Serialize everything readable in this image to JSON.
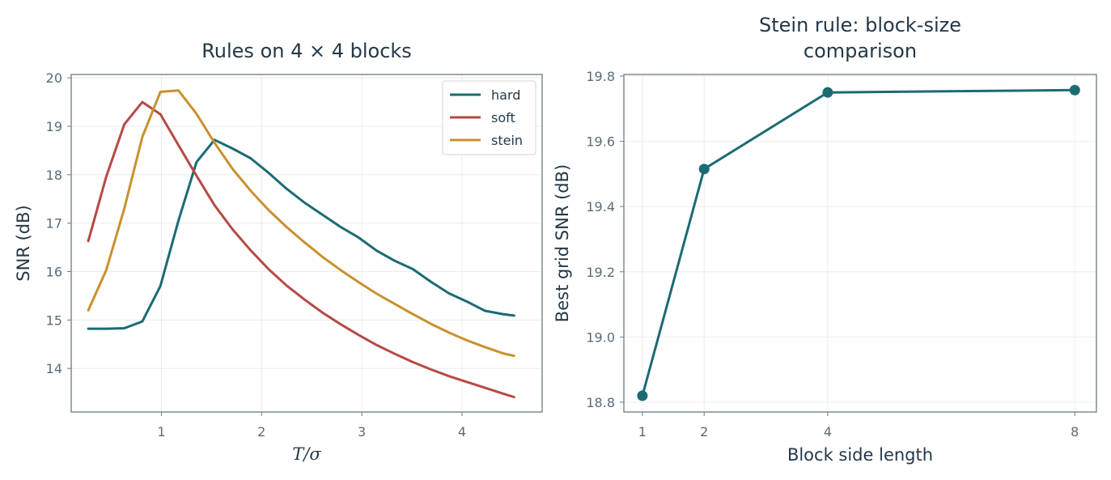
{
  "chart_data": [
    {
      "type": "line",
      "title": "Rules on 4 × 4 blocks",
      "xlabel": "T/σ",
      "ylabel": "SNR (dB)",
      "xlim": [
        0.1,
        4.8
      ],
      "ylim": [
        13.1,
        20.07
      ],
      "xticks": [
        1,
        2,
        3,
        4
      ],
      "yticks": [
        14,
        15,
        16,
        17,
        18,
        19,
        20
      ],
      "grid": true,
      "legend": "top-right",
      "x": [
        0.27,
        0.45,
        0.63,
        0.81,
        0.99,
        1.17,
        1.35,
        1.53,
        1.71,
        1.89,
        2.07,
        2.25,
        2.43,
        2.61,
        2.79,
        2.97,
        3.15,
        3.33,
        3.51,
        3.69,
        3.87,
        4.05,
        4.23,
        4.41,
        4.52
      ],
      "series": [
        {
          "name": "hard",
          "color": "#1b6b73",
          "values": [
            14.82,
            14.82,
            14.83,
            14.97,
            15.7,
            17.05,
            18.26,
            18.72,
            18.54,
            18.34,
            18.04,
            17.71,
            17.42,
            17.17,
            16.92,
            16.7,
            16.43,
            16.22,
            16.05,
            15.79,
            15.55,
            15.38,
            15.19,
            15.12,
            15.09
          ]
        },
        {
          "name": "soft",
          "color": "#b54a44",
          "values": [
            16.63,
            17.96,
            19.04,
            19.5,
            19.25,
            18.61,
            17.98,
            17.37,
            16.87,
            16.44,
            16.05,
            15.71,
            15.42,
            15.15,
            14.91,
            14.69,
            14.48,
            14.3,
            14.13,
            13.98,
            13.84,
            13.72,
            13.6,
            13.48,
            13.41
          ]
        },
        {
          "name": "stein",
          "color": "#c8912e",
          "values": [
            15.2,
            16.03,
            17.3,
            18.78,
            19.71,
            19.74,
            19.26,
            18.66,
            18.12,
            17.67,
            17.27,
            16.92,
            16.6,
            16.3,
            16.03,
            15.78,
            15.54,
            15.33,
            15.12,
            14.92,
            14.74,
            14.58,
            14.44,
            14.31,
            14.26
          ]
        }
      ]
    },
    {
      "type": "line",
      "title": [
        "Stein rule: block-size",
        "comparison"
      ],
      "xlabel": "Block side length",
      "ylabel": "Best grid SNR (dB)",
      "xlim": [
        0.7,
        8.35
      ],
      "ylim": [
        18.77,
        19.805
      ],
      "xticks": [
        1,
        2,
        4,
        8
      ],
      "yticks": [
        18.8,
        19.0,
        19.2,
        19.4,
        19.6,
        19.8
      ],
      "ytick_labels": [
        "18.8",
        "19.0",
        "19.2",
        "19.4",
        "19.6",
        "19.8"
      ],
      "grid": true,
      "markers": true,
      "x": [
        1,
        2,
        4,
        8
      ],
      "series": [
        {
          "color": "#1b6b73",
          "values": [
            18.82,
            19.515,
            19.75,
            19.757
          ]
        }
      ]
    }
  ]
}
